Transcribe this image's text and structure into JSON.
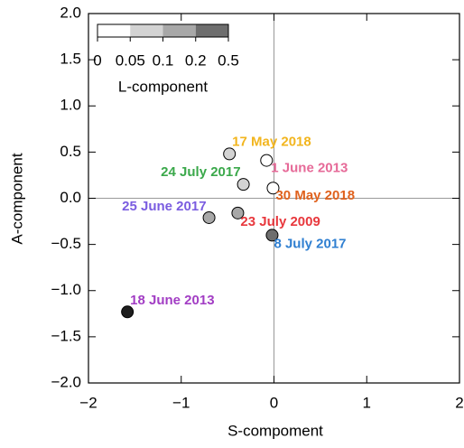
{
  "chart_data": {
    "type": "scatter",
    "xlabel": "S-compoment",
    "ylabel": "A-component",
    "x": [
      -0.48,
      -0.08,
      -0.33,
      -0.01,
      -0.7,
      -0.39,
      -0.02,
      -1.58
    ],
    "y": [
      0.48,
      0.41,
      0.15,
      0.11,
      -0.21,
      -0.16,
      -0.4,
      -1.23
    ],
    "labels": [
      "17 May 2018",
      "1 June 2013",
      "24 July 2017",
      "30 May 2018",
      "25 June 2017",
      "23 July 2009",
      "8 July 2017",
      "18 June 2013"
    ],
    "label_colors": [
      "#f2b51e",
      "#e66a98",
      "#3aa84a",
      "#e0621e",
      "#7a5ce0",
      "#e8383d",
      "#2f7fd1",
      "#a23dc4"
    ],
    "point_colors": [
      "#d3d3d3",
      "#ffffff",
      "#d3d3d3",
      "#ffffff",
      "#a8a8a8",
      "#a8a8a8",
      "#6e6e6e",
      "#1e1e1e"
    ],
    "xlim": [
      -2,
      2
    ],
    "ylim": [
      -2,
      2
    ],
    "xticks": [
      -2,
      -1,
      0,
      1,
      2
    ],
    "yticks": [
      {
        "value": 2,
        "label": "2.0"
      },
      {
        "value": 1.5,
        "label": "1.5"
      },
      {
        "value": 1,
        "label": "1.0"
      },
      {
        "value": 0.5,
        "label": "0.5"
      },
      {
        "value": 0,
        "label": "0.0"
      },
      {
        "value": -0.5,
        "label": "−0.5"
      },
      {
        "value": -1,
        "label": "−1.0"
      },
      {
        "value": -1.5,
        "label": "−1.5"
      },
      {
        "value": -2,
        "label": "−2.0"
      }
    ],
    "xtick_labels": [
      "−2",
      "−1",
      "0",
      "1",
      "2"
    ],
    "zero_lines": true,
    "colorbar": {
      "title": "L-component",
      "ticks": [
        0,
        0.05,
        0.1,
        0.2,
        0.5
      ],
      "colors": [
        "#ffffff",
        "#d3d3d3",
        "#a8a8a8",
        "#6e6e6e"
      ]
    }
  }
}
